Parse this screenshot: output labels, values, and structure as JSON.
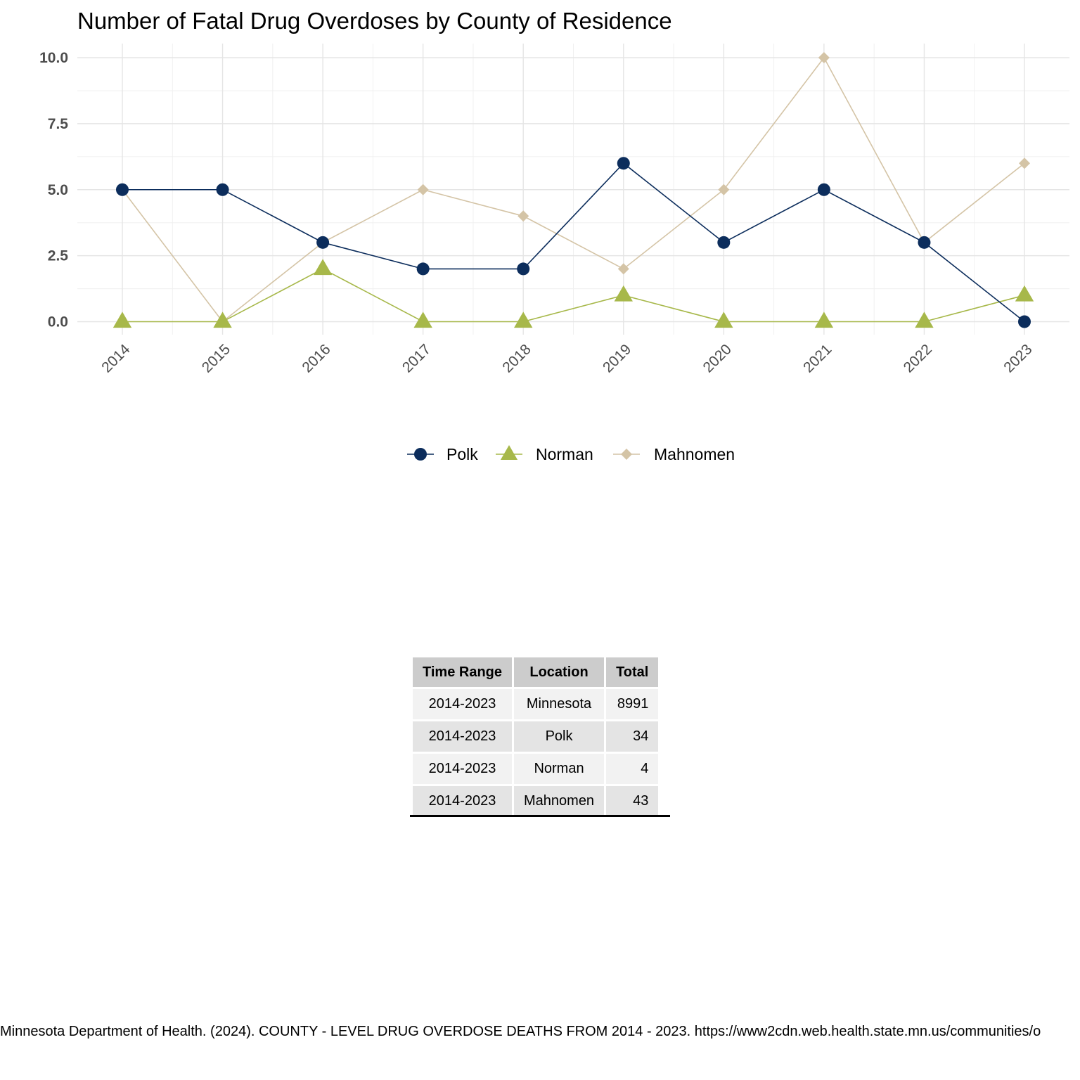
{
  "chart_data": {
    "type": "line",
    "title": "Number of Fatal Drug Overdoses by County of Residence",
    "xlabel": "",
    "ylabel": "",
    "x": [
      "2014",
      "2015",
      "2016",
      "2017",
      "2018",
      "2019",
      "2020",
      "2021",
      "2022",
      "2023"
    ],
    "ylim": [
      -0.5,
      10.5
    ],
    "yticks": [
      "0.0",
      "2.5",
      "5.0",
      "7.5",
      "10.0"
    ],
    "yticks_values": [
      0,
      2.5,
      5,
      7.5,
      10
    ],
    "grid": true,
    "legend_position": "bottom",
    "series": [
      {
        "name": "Polk",
        "color": "#0c2d5c",
        "marker": "circle",
        "values": [
          5,
          5,
          3,
          2,
          2,
          6,
          3,
          5,
          3,
          0
        ]
      },
      {
        "name": "Norman",
        "color": "#a7b84a",
        "marker": "triangle",
        "values": [
          0,
          0,
          2,
          0,
          0,
          1,
          0,
          0,
          0,
          1
        ]
      },
      {
        "name": "Mahnomen",
        "color": "#d4c4a6",
        "marker": "diamond",
        "values": [
          5,
          0,
          3,
          5,
          4,
          2,
          5,
          10,
          3,
          6
        ]
      }
    ]
  },
  "table": {
    "headers": [
      "Time Range",
      "Location",
      "Total"
    ],
    "rows": [
      [
        "2014-2023",
        "Minnesota",
        "8991"
      ],
      [
        "2014-2023",
        "Polk",
        "34"
      ],
      [
        "2014-2023",
        "Norman",
        "4"
      ],
      [
        "2014-2023",
        "Mahnomen",
        "43"
      ]
    ]
  },
  "source_note": "Minnesota Department of Health. (2024). COUNTY - LEVEL DRUG OVERDOSE DEATHS FROM 2014 - 2023. https://www2cdn.web.health.state.mn.us/communities/o"
}
